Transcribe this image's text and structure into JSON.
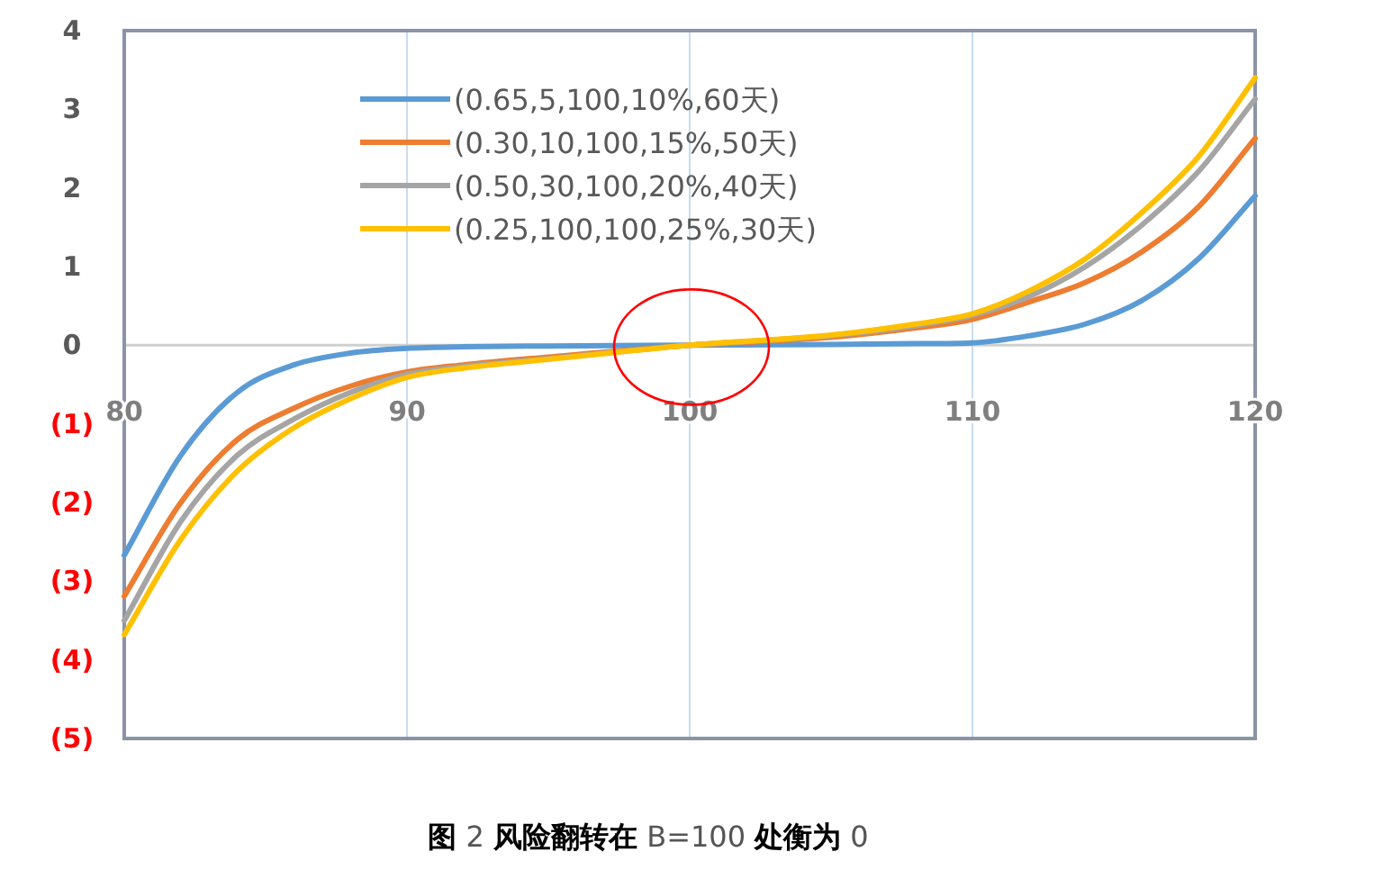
{
  "chart_data": {
    "type": "line",
    "x": [
      80,
      82,
      84,
      86,
      88,
      90,
      92,
      95,
      100,
      105,
      108,
      110,
      112,
      114,
      116,
      118,
      120
    ],
    "series": [
      {
        "name": "(0.65,5,100,10%,60天)",
        "color": "#5b9bd5",
        "values": [
          -2.67,
          -1.4,
          -0.6,
          -0.25,
          -0.1,
          -0.04,
          -0.02,
          -0.01,
          0,
          0.01,
          0.02,
          0.03,
          0.12,
          0.27,
          0.57,
          1.1,
          1.9
        ]
      },
      {
        "name": "(0.30,10,100,15%,50天)",
        "color": "#ed7d31",
        "values": [
          -3.19,
          -2.0,
          -1.2,
          -0.8,
          -0.52,
          -0.34,
          -0.25,
          -0.15,
          0,
          0.1,
          0.22,
          0.33,
          0.55,
          0.8,
          1.19,
          1.76,
          2.63
        ]
      },
      {
        "name": "(0.50,30,100,20%,40天)",
        "color": "#a5a5a5",
        "values": [
          -3.5,
          -2.24,
          -1.4,
          -0.94,
          -0.6,
          -0.37,
          -0.27,
          -0.17,
          0,
          0.12,
          0.25,
          0.38,
          0.62,
          1.0,
          1.53,
          2.21,
          3.13
        ]
      },
      {
        "name": "(0.25,100,100,25%,30天)",
        "color": "#ffc000",
        "values": [
          -3.68,
          -2.47,
          -1.6,
          -1.05,
          -0.68,
          -0.41,
          -0.29,
          -0.18,
          0,
          0.13,
          0.27,
          0.4,
          0.69,
          1.1,
          1.69,
          2.4,
          3.4
        ]
      }
    ],
    "xlim": [
      80,
      120
    ],
    "xticks": [
      80,
      90,
      100,
      110,
      120
    ],
    "ylim": [
      -5,
      4
    ],
    "yticks": [
      4,
      3,
      2,
      1,
      0,
      {
        "value": -1,
        "label": "(1)"
      },
      {
        "value": -2,
        "label": "(2)"
      },
      {
        "value": -3,
        "label": "(3)"
      },
      {
        "value": -4,
        "label": "(4)"
      },
      {
        "value": -5,
        "label": "(5)"
      }
    ],
    "grid": "x",
    "legend": "top",
    "marker": "none",
    "line_style": "solid",
    "annotations": [
      "**图** 2 **风险翻转在** B=100 **处衡为** 0"
    ]
  }
}
